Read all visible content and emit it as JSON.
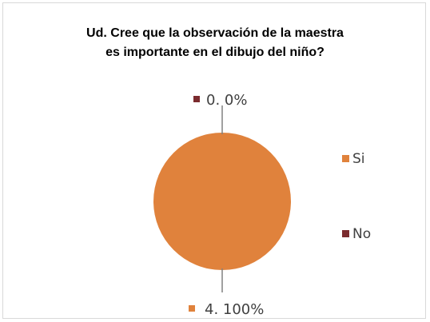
{
  "chart_data": {
    "type": "pie",
    "title_lines": [
      "Ud. Cree que la observación de la maestra",
      "es importante en el dibujo del niño?"
    ],
    "categories": [
      "Si",
      "No"
    ],
    "values": [
      4,
      0
    ],
    "percent_labels": [
      "100%",
      "0%"
    ],
    "data_labels": [
      "4. 100%",
      "0. 0%"
    ],
    "colors": [
      "#e0823c",
      "#7b2b2e"
    ],
    "legend": {
      "placement": "right",
      "entries": [
        "Si",
        "No"
      ]
    }
  }
}
